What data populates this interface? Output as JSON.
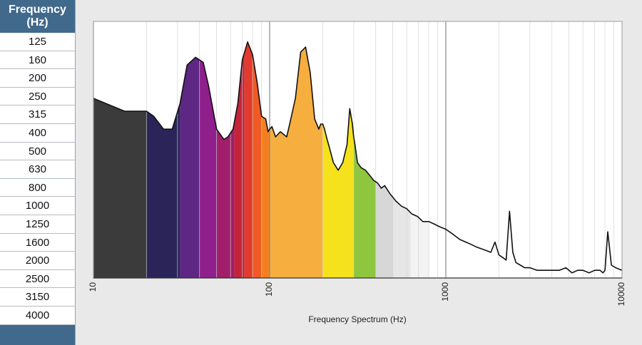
{
  "table": {
    "header": "Frequency\n(Hz)",
    "rows": [
      "125",
      "160",
      "200",
      "250",
      "315",
      "400",
      "500",
      "630",
      "800",
      "1000",
      "1250",
      "1600",
      "2000",
      "2500",
      "3150",
      "4000"
    ]
  },
  "chart_data": {
    "type": "area",
    "title": "",
    "xlabel": "Frequency Spectrum (Hz)",
    "ylabel": "",
    "x_scale": "log",
    "xlim": [
      10,
      10000
    ],
    "ylim": [
      0,
      100
    ],
    "x_ticks": [
      "10",
      "100",
      "1000",
      "10000"
    ],
    "grid": "vertical",
    "bands": [
      {
        "from": 10,
        "to": 20,
        "color": "#3b3b3b"
      },
      {
        "from": 20,
        "to": 31,
        "color": "#2a2458"
      },
      {
        "from": 31,
        "to": 40,
        "color": "#5d2783"
      },
      {
        "from": 40,
        "to": 50,
        "color": "#8f1f8c"
      },
      {
        "from": 50,
        "to": 63,
        "color": "#a11f6a"
      },
      {
        "from": 63,
        "to": 72,
        "color": "#c4243a"
      },
      {
        "from": 72,
        "to": 80,
        "color": "#e23a2c"
      },
      {
        "from": 80,
        "to": 90,
        "color": "#f05a24"
      },
      {
        "from": 90,
        "to": 100,
        "color": "#f47f20"
      },
      {
        "from": 100,
        "to": 200,
        "color": "#f6ae3f"
      },
      {
        "from": 200,
        "to": 300,
        "color": "#f5e21c"
      },
      {
        "from": 300,
        "to": 400,
        "color": "#8ec63f"
      },
      {
        "from": 400,
        "to": 500,
        "color": "#d7d7d7"
      },
      {
        "from": 500,
        "to": 630,
        "color": "#e6e6e6"
      },
      {
        "from": 630,
        "to": 800,
        "color": "#f3f3f3"
      },
      {
        "from": 800,
        "to": 10000,
        "color": "#ffffff"
      }
    ],
    "series": [
      {
        "x": [
          10,
          15,
          18,
          20,
          22,
          25,
          28,
          31,
          34,
          38,
          42,
          45,
          50,
          55,
          58,
          62,
          66,
          70,
          75,
          80,
          85,
          90,
          95,
          98,
          100,
          103,
          108,
          115,
          125,
          130,
          140,
          150,
          160,
          170,
          180,
          190,
          195,
          200,
          205,
          210,
          220,
          230,
          245,
          260,
          275,
          285,
          295,
          300,
          305,
          315,
          330,
          350,
          370,
          390,
          410,
          430,
          450,
          480,
          520,
          560,
          600,
          640,
          690,
          740,
          800,
          860,
          920,
          1000,
          1100,
          1200,
          1300,
          1400,
          1500,
          1650,
          1800,
          1900,
          2000,
          2100,
          2200,
          2300,
          2400,
          2500,
          2650,
          2800,
          3000,
          3300,
          3600,
          4000,
          4400,
          4800,
          5200,
          5600,
          6000,
          6500,
          7000,
          7500,
          7800,
          8000,
          8300,
          8700,
          9200,
          10000
        ],
        "y": [
          70,
          65,
          65,
          65,
          63,
          58,
          58,
          68,
          83,
          86,
          84,
          75,
          58,
          54,
          55,
          58,
          68,
          85,
          92,
          87,
          76,
          63,
          62,
          57,
          58,
          59,
          55,
          57,
          55,
          60,
          70,
          88,
          90,
          80,
          62,
          58,
          60,
          60,
          58,
          55,
          50,
          45,
          42,
          45,
          52,
          66,
          60,
          55,
          52,
          45,
          43,
          42,
          40,
          38,
          37,
          35,
          36,
          33,
          30,
          28,
          27,
          25,
          24,
          22,
          22,
          21,
          20,
          19,
          17,
          15,
          14,
          13,
          12,
          11,
          10,
          14,
          9,
          8,
          7,
          26,
          10,
          6,
          5,
          4,
          4,
          3,
          3,
          3,
          3,
          4,
          2,
          3,
          3,
          2,
          3,
          3,
          2,
          3,
          18,
          5,
          4,
          3
        ]
      }
    ]
  }
}
